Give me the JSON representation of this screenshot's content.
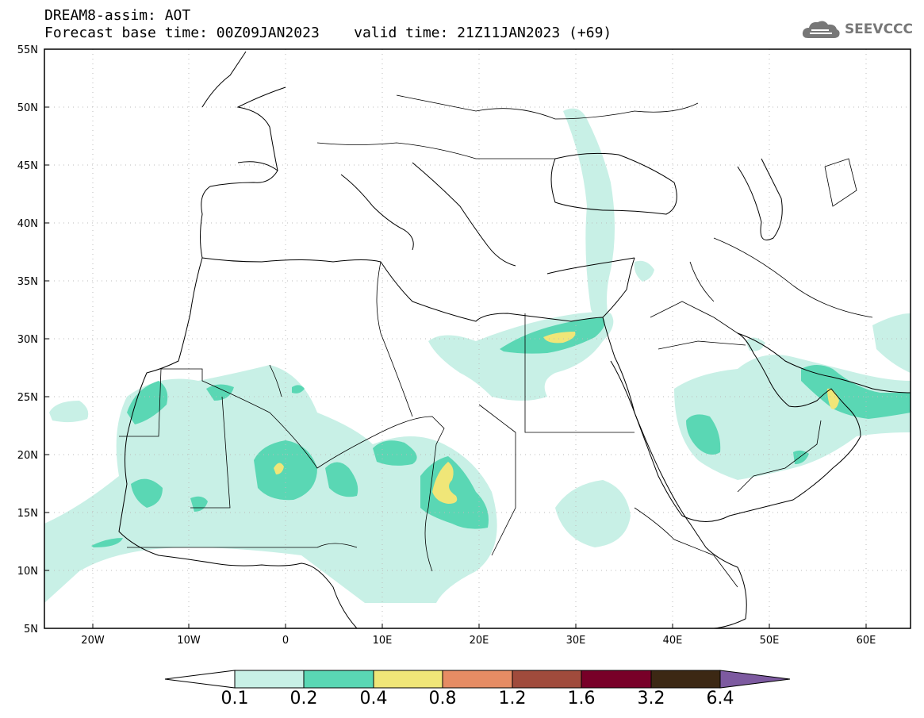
{
  "header": {
    "line1": "DREAM8-assim: AOT",
    "line2": "Forecast base time: 00Z09JAN2023    valid time: 21Z11JAN2023 (+69)",
    "logo_text": "SEEVCCC"
  },
  "map": {
    "lat_labels": [
      "55N",
      "50N",
      "45N",
      "40N",
      "35N",
      "30N",
      "25N",
      "20N",
      "15N",
      "10N",
      "5N"
    ],
    "lon_labels": [
      "20W",
      "10W",
      "0",
      "10E",
      "20E",
      "30E",
      "40E",
      "50E",
      "60E"
    ],
    "lat_range": [
      5,
      55
    ],
    "lon_range": [
      -25,
      65
    ]
  },
  "colorbar": {
    "labels": [
      "0.1",
      "0.2",
      "0.4",
      "0.8",
      "1.2",
      "1.6",
      "3.2",
      "6.4"
    ],
    "colors": [
      "#ffffff",
      "#c8f0e6",
      "#5ad7b4",
      "#f0e678",
      "#e68c64",
      "#a04b3c",
      "#780028",
      "#3c2814",
      "#7d5aa0"
    ]
  }
}
